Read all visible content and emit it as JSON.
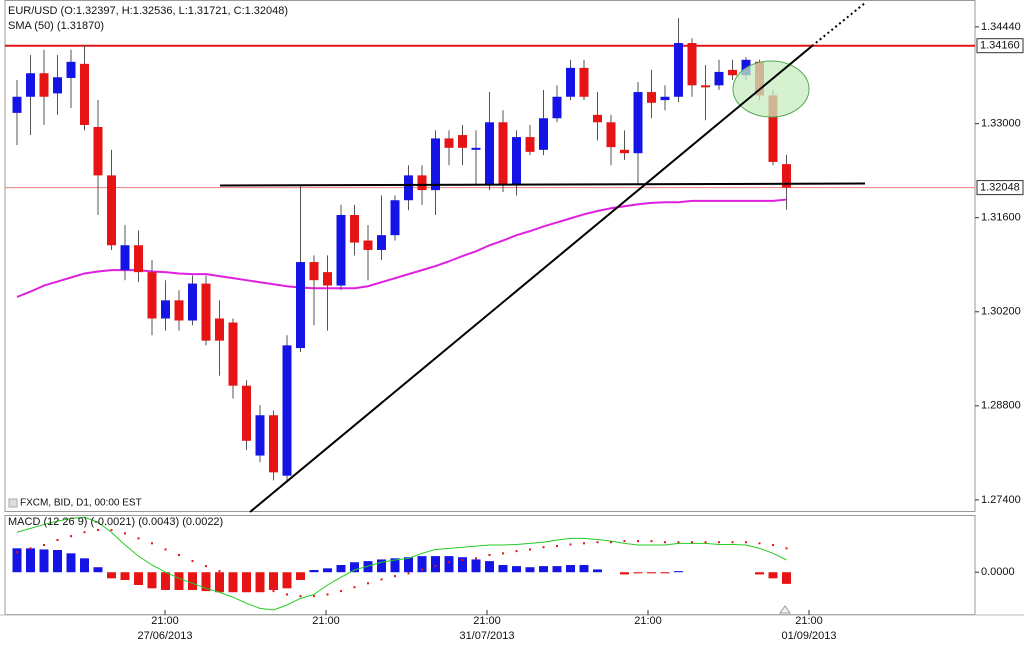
{
  "chart_data": [
    {
      "type": "candlestick",
      "title": "EUR/USD (O:1.32397, H:1.32536, L:1.31721, C:1.32048)",
      "note": "FXCM, BID, D1, 00:00 EST",
      "up_color": "#1414e6",
      "down_color": "#e61414",
      "open": [
        1.3316,
        1.334,
        1.3375,
        1.3345,
        1.3368,
        1.3389,
        1.3295,
        1.3223,
        1.3082,
        1.3119,
        1.3079,
        1.301,
        1.3037,
        1.3007,
        1.3062,
        1.301,
        1.3004,
        1.291,
        1.2806,
        1.2866,
        1.2776,
        1.2966,
        1.3094,
        1.3079,
        1.3059,
        1.3164,
        1.3126,
        1.3112,
        1.3134,
        1.3186,
        1.3223,
        1.3201,
        1.3278,
        1.3283,
        1.3261,
        1.3208,
        1.3302,
        1.3208,
        1.328,
        1.3261,
        1.3308,
        1.334,
        1.3383,
        1.3313,
        1.3302,
        1.3261,
        1.3256,
        1.3347,
        1.3335,
        1.334,
        1.342,
        1.3357,
        1.3357,
        1.338,
        1.3372,
        1.3392,
        1.3342,
        1.32397
      ],
      "high": [
        1.3365,
        1.3402,
        1.341,
        1.3402,
        1.341,
        1.3417,
        1.3335,
        1.3261,
        1.3149,
        1.3141,
        1.3097,
        1.3067,
        1.3052,
        1.3074,
        1.3074,
        1.3037,
        1.301,
        1.2918,
        1.2881,
        1.2873,
        1.2985,
        1.3208,
        1.3104,
        1.3104,
        1.3179,
        1.3179,
        1.3149,
        1.3193,
        1.3193,
        1.3238,
        1.3238,
        1.329,
        1.329,
        1.3298,
        1.329,
        1.3347,
        1.332,
        1.329,
        1.3298,
        1.335,
        1.3357,
        1.3395,
        1.3395,
        1.3347,
        1.3313,
        1.329,
        1.3362,
        1.338,
        1.3357,
        1.3457,
        1.3427,
        1.3387,
        1.3395,
        1.3395,
        1.3399,
        1.3395,
        1.335,
        1.32536
      ],
      "low": [
        1.3268,
        1.3283,
        1.3298,
        1.3313,
        1.3323,
        1.329,
        1.3164,
        1.3112,
        1.3067,
        1.3064,
        1.2985,
        1.2992,
        1.2992,
        1.3,
        1.297,
        1.2925,
        1.2891,
        1.2814,
        1.2796,
        1.2769,
        1.2766,
        1.296,
        1.3,
        1.2992,
        1.3052,
        1.3104,
        1.3067,
        1.3097,
        1.3126,
        1.3171,
        1.3179,
        1.3164,
        1.3238,
        1.3238,
        1.3208,
        1.3201,
        1.3198,
        1.3193,
        1.3253,
        1.3253,
        1.3302,
        1.3335,
        1.3335,
        1.3275,
        1.3238,
        1.3246,
        1.3208,
        1.3308,
        1.332,
        1.3332,
        1.334,
        1.3305,
        1.335,
        1.3365,
        1.3365,
        1.3335,
        1.3238,
        1.31721
      ],
      "close": [
        1.334,
        1.3375,
        1.334,
        1.3369,
        1.3392,
        1.3298,
        1.3223,
        1.3119,
        1.3119,
        1.3079,
        1.301,
        1.3037,
        1.3007,
        1.3062,
        1.2977,
        1.2977,
        1.291,
        1.2828,
        1.2866,
        1.2781,
        1.297,
        1.3094,
        1.3067,
        1.3059,
        1.3164,
        1.3123,
        1.3112,
        1.3134,
        1.3186,
        1.3223,
        1.3201,
        1.3278,
        1.3264,
        1.3264,
        1.3264,
        1.3302,
        1.3208,
        1.328,
        1.3258,
        1.3308,
        1.334,
        1.3383,
        1.334,
        1.3302,
        1.3265,
        1.3256,
        1.3347,
        1.3331,
        1.334,
        1.342,
        1.3357,
        1.3354,
        1.3377,
        1.3372,
        1.3395,
        1.3342,
        1.3243,
        1.32048
      ],
      "series": [
        {
          "name": "SMA (50) (1.31870)",
          "color": "#e020e0",
          "values": [
            1.3042,
            1.305,
            1.3059,
            1.3065,
            1.3071,
            1.3077,
            1.308,
            1.3082,
            1.3082,
            1.3082,
            1.308,
            1.3079,
            1.3077,
            1.3076,
            1.3076,
            1.3073,
            1.307,
            1.3067,
            1.3064,
            1.3061,
            1.3058,
            1.3056,
            1.3055,
            1.3055,
            1.3055,
            1.3055,
            1.3058,
            1.3064,
            1.307,
            1.3076,
            1.3082,
            1.3088,
            1.3095,
            1.3103,
            1.311,
            1.3119,
            1.3126,
            1.3134,
            1.314,
            1.3147,
            1.3153,
            1.3159,
            1.3165,
            1.317,
            1.3174,
            1.3177,
            1.318,
            1.3182,
            1.3183,
            1.3183,
            1.3185,
            1.3185,
            1.3185,
            1.3185,
            1.3185,
            1.3185,
            1.3185,
            1.3187
          ]
        }
      ],
      "ylim": [
        1.2722,
        1.3484
      ],
      "yticks": [
        {
          "value": 1.3444,
          "label": "1.34440"
        },
        {
          "value": 1.33,
          "label": "1.33000"
        },
        {
          "value": 1.316,
          "label": "1.31600"
        },
        {
          "value": 1.302,
          "label": "1.30200"
        },
        {
          "value": 1.288,
          "label": "1.28800"
        },
        {
          "value": 1.274,
          "label": "1.27400"
        }
      ],
      "markers": [
        {
          "value": 1.3416,
          "label": "1.34160",
          "color": "#e61414"
        },
        {
          "value": 1.32048,
          "label": "1.32048",
          "color": "#f08080"
        }
      ],
      "x_labels": [
        {
          "time": "21:00",
          "date": "27/06/2013"
        },
        {
          "time": "21:00"
        },
        {
          "time": "21:00",
          "date": "31/07/2013"
        },
        {
          "time": "21:00"
        },
        {
          "time": "21:00",
          "date": "01/09/2013"
        }
      ]
    },
    {
      "type": "macd",
      "title": "MACD (12 26 9) (-0.0021) (0.0043) (0.0022)",
      "up_color": "#1414e6",
      "down_color": "#e61414",
      "histogram": [
        0.0043,
        0.0043,
        0.0041,
        0.004,
        0.0034,
        0.0025,
        0.0009,
        -0.0011,
        -0.0014,
        -0.0023,
        -0.0029,
        -0.0032,
        -0.0032,
        -0.0032,
        -0.0034,
        -0.0036,
        -0.0036,
        -0.0036,
        -0.0036,
        -0.0032,
        -0.0029,
        -0.0014,
        0.0004,
        0.0007,
        0.0013,
        0.0018,
        0.002,
        0.0023,
        0.0025,
        0.0027,
        0.0029,
        0.0029,
        0.0029,
        0.0027,
        0.0023,
        0.002,
        0.0013,
        0.0011,
        0.0009,
        0.0011,
        0.0011,
        0.0013,
        0.0013,
        0.0005,
        0,
        -0.0004,
        -0.0002,
        -0.0002,
        -0.0002,
        0.0002,
        0,
        0,
        0,
        0,
        0,
        -0.0004,
        -0.0011,
        -0.0021
      ],
      "main": {
        "color": "#22cc22",
        "values": [
          0.0072,
          0.0079,
          0.0086,
          0.0092,
          0.0097,
          0.0099,
          0.009,
          0.0072,
          0.0049,
          0.0029,
          0.0013,
          0,
          -0.0011,
          -0.002,
          -0.0029,
          -0.0036,
          -0.0045,
          -0.0056,
          -0.0065,
          -0.0068,
          -0.0059,
          -0.0047,
          -0.004,
          -0.0023,
          -0.0009,
          0.0004,
          0.0011,
          0.0018,
          0.0022,
          0.0025,
          0.0034,
          0.0041,
          0.0043,
          0.0045,
          0.0047,
          0.0049,
          0.0049,
          0.005,
          0.0052,
          0.0054,
          0.0058,
          0.0061,
          0.0061,
          0.0059,
          0.0056,
          0.0052,
          0.0049,
          0.0049,
          0.0049,
          0.0052,
          0.0052,
          0.0052,
          0.005,
          0.005,
          0.0049,
          0.0043,
          0.0034,
          0.0022
        ]
      },
      "signal": {
        "color": "#e61414",
        "values": [
          0.0036,
          0.0043,
          0.0049,
          0.0058,
          0.0065,
          0.0072,
          0.0076,
          0.0076,
          0.007,
          0.0061,
          0.0052,
          0.0041,
          0.0031,
          0.002,
          0.0011,
          0.0002,
          -0.0007,
          -0.0016,
          -0.0025,
          -0.0034,
          -0.004,
          -0.0043,
          -0.0043,
          -0.004,
          -0.0034,
          -0.0027,
          -0.002,
          -0.0013,
          -0.0007,
          -0.0002,
          0.0005,
          0.0011,
          0.0018,
          0.0022,
          0.0025,
          0.0031,
          0.0034,
          0.0038,
          0.0041,
          0.0045,
          0.0047,
          0.005,
          0.0052,
          0.0054,
          0.0054,
          0.0056,
          0.0056,
          0.0056,
          0.0054,
          0.0054,
          0.0054,
          0.0054,
          0.0054,
          0.0054,
          0.0054,
          0.0052,
          0.0049,
          0.0043
        ]
      },
      "ylim": [
        -0.0077,
        0.0103
      ],
      "yticks": [
        {
          "value": 0,
          "label": "0.0000"
        }
      ]
    }
  ]
}
